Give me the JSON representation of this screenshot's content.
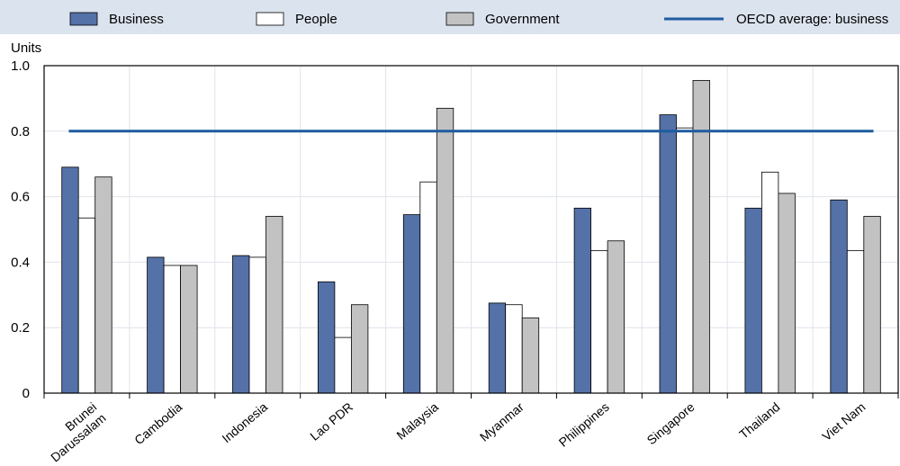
{
  "chart_data": {
    "type": "bar",
    "ylabel": "Units",
    "ylim": [
      0,
      1.0
    ],
    "yticks": [
      "0",
      "0.2",
      "0.4",
      "0.6",
      "0.8",
      "1.0"
    ],
    "categories": [
      "Brunei Darussalam",
      "Cambodia",
      "Indonesia",
      "Lao PDR",
      "Malaysia",
      "Myanmar",
      "Philippines",
      "Singapore",
      "Thailand",
      "Viet Nam"
    ],
    "category_lines": [
      [
        "Brunei",
        "Darussalam"
      ],
      [
        "Cambodia"
      ],
      [
        "Indonesia"
      ],
      [
        "Lao PDR"
      ],
      [
        "Malaysia"
      ],
      [
        "Myanmar"
      ],
      [
        "Philippines"
      ],
      [
        "Singapore"
      ],
      [
        "Thailand"
      ],
      [
        "Viet Nam"
      ]
    ],
    "series": [
      {
        "name": "Business",
        "color": "#5471a8",
        "values": [
          0.69,
          0.415,
          0.42,
          0.34,
          0.545,
          0.275,
          0.565,
          0.85,
          0.565,
          0.59
        ]
      },
      {
        "name": "People",
        "color": "#ffffff",
        "values": [
          0.535,
          0.39,
          0.415,
          0.17,
          0.645,
          0.27,
          0.435,
          0.81,
          0.675,
          0.435
        ]
      },
      {
        "name": "Government",
        "color": "#c2c2c2",
        "values": [
          0.66,
          0.39,
          0.54,
          0.27,
          0.87,
          0.23,
          0.465,
          0.955,
          0.61,
          0.54
        ]
      }
    ],
    "reference_line": {
      "name": "OECD average: business",
      "value": 0.8,
      "color": "#1f5ca0"
    },
    "grid": true,
    "legend_position": "top"
  }
}
